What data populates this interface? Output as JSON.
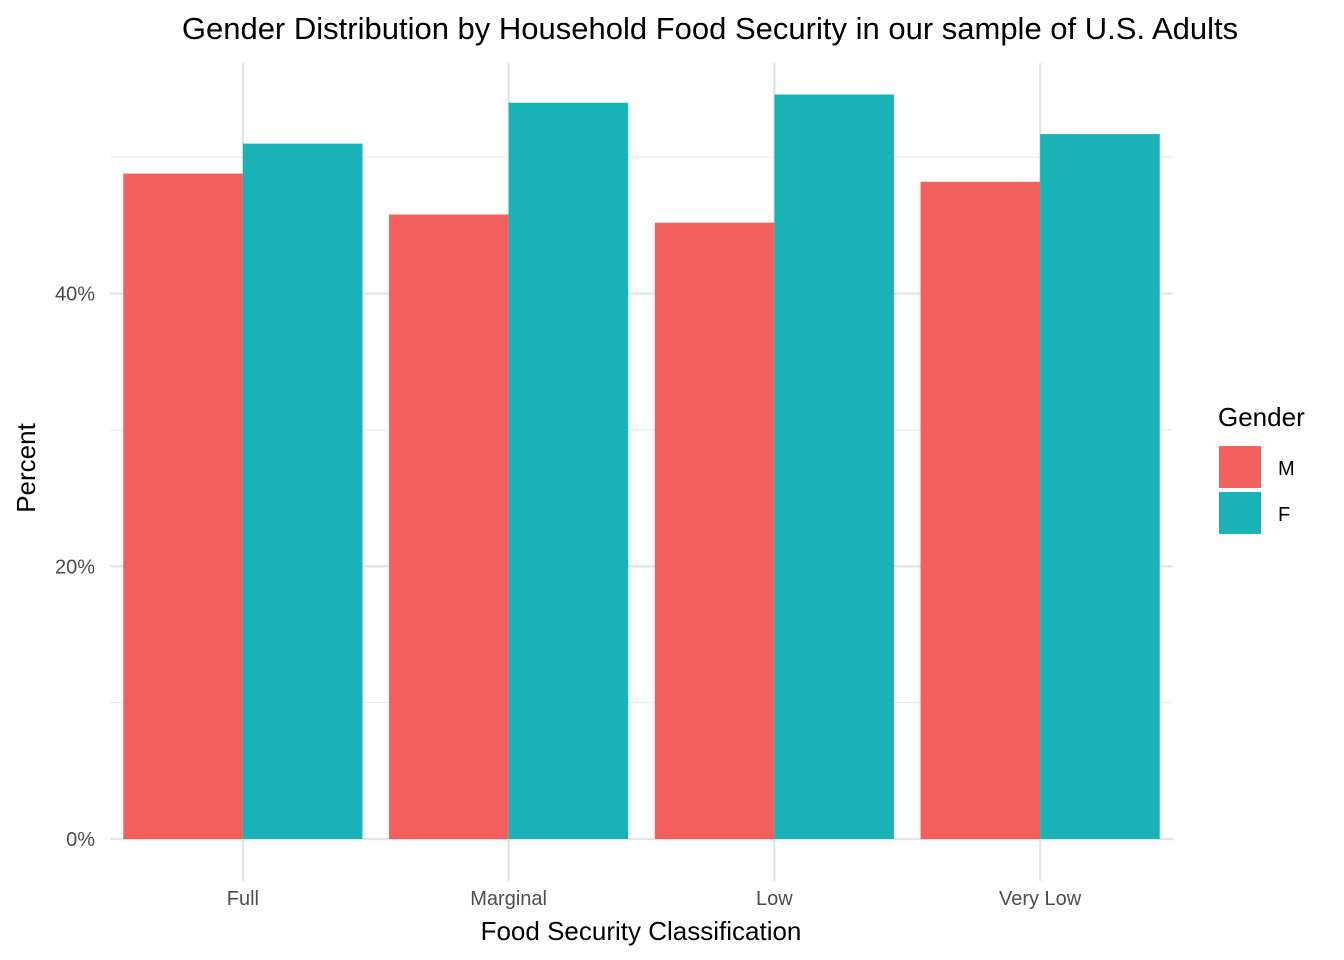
{
  "chart_data": {
    "type": "bar",
    "title": "Gender Distribution by Household Food Security in our sample of U.S. Adults",
    "xlabel": "Food Security Classification",
    "ylabel": "Percent",
    "categories": [
      "Full",
      "Marginal",
      "Low",
      "Very Low"
    ],
    "series": [
      {
        "name": "M",
        "color": "#F35F5C",
        "values": [
          48.8,
          45.8,
          45.2,
          48.2
        ]
      },
      {
        "name": "F",
        "color": "#19B3B7",
        "values": [
          51.0,
          54.0,
          54.6,
          51.7
        ]
      }
    ],
    "ylim": [
      0,
      57.5
    ],
    "y_ticks": [
      0,
      20,
      40
    ],
    "y_tick_labels": [
      "0%",
      "20%",
      "40%"
    ],
    "legend": {
      "title": "Gender",
      "position": "right"
    },
    "grid": true
  }
}
